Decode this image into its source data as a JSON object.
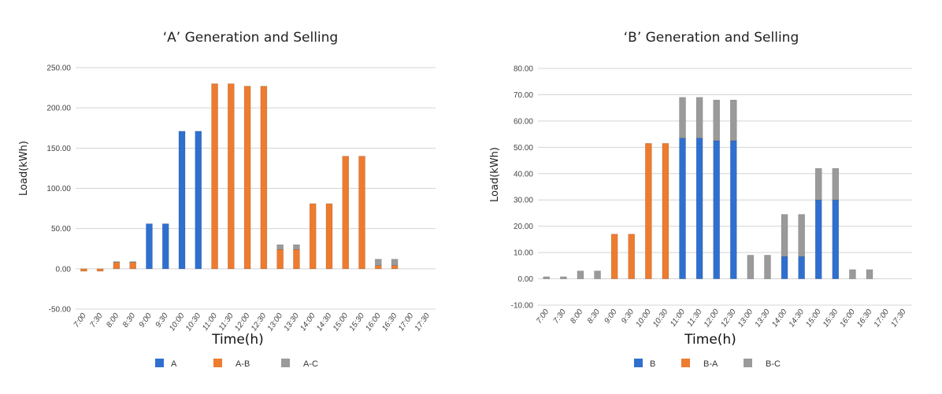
{
  "colors": {
    "blue": "#2f6fd0",
    "orange": "#ee7b2e",
    "gray": "#9a9a9a",
    "grid": "#d4d4d4"
  },
  "chart_data": [
    {
      "type": "bar",
      "stacked": true,
      "title": "‘A’ Generation and Selling",
      "xlabel": "Time(h)",
      "ylabel": "Load(kWh)",
      "ylim": [
        -50,
        250
      ],
      "yticks": [
        -50,
        0,
        50,
        100,
        150,
        200,
        250
      ],
      "ytick_labels": [
        "-50.00",
        "0.00",
        "50.00",
        "100.00",
        "150.00",
        "200.00",
        "250.00"
      ],
      "grid": true,
      "legend_position": "bottom",
      "categories": [
        "7:00",
        "7:30",
        "8:00",
        "8:30",
        "9:00",
        "9:30",
        "10:00",
        "10:30",
        "11:00",
        "11:30",
        "12:00",
        "12:30",
        "13:00",
        "13:30",
        "14:00",
        "14:30",
        "15:00",
        "15:30",
        "16:00",
        "16:30",
        "17:00",
        "17:30"
      ],
      "series": [
        {
          "name": "A",
          "color": "#2f6fd0",
          "values": [
            0,
            0,
            0,
            0,
            56,
            56,
            171,
            171,
            0,
            0,
            0,
            0,
            0,
            0,
            0,
            0,
            0,
            0,
            0,
            0,
            0,
            0
          ]
        },
        {
          "name": "A-B",
          "color": "#ee7b2e",
          "values": [
            -3,
            -3,
            8,
            8,
            0,
            0,
            0,
            0,
            230,
            230,
            227,
            227,
            24,
            24,
            81,
            81,
            140,
            140,
            4,
            4,
            0,
            0
          ]
        },
        {
          "name": "A-C",
          "color": "#9a9a9a",
          "values": [
            0,
            0,
            1,
            1,
            0,
            0,
            0,
            0,
            0,
            0,
            0,
            0,
            6,
            6,
            0,
            0,
            0,
            0,
            8,
            8,
            0,
            0
          ]
        }
      ]
    },
    {
      "type": "bar",
      "stacked": true,
      "title": "‘B’ Generation and Selling",
      "xlabel": "Time(h)",
      "ylabel": "Load(kWh)",
      "ylim": [
        -10,
        80
      ],
      "yticks": [
        -10,
        0,
        10,
        20,
        30,
        40,
        50,
        60,
        70,
        80
      ],
      "ytick_labels": [
        "-10.00",
        "0.00",
        "10.00",
        "20.00",
        "30.00",
        "40.00",
        "50.00",
        "60.00",
        "70.00",
        "80.00"
      ],
      "grid": true,
      "legend_position": "bottom",
      "categories": [
        "7:00",
        "7:30",
        "8:00",
        "8:30",
        "9:00",
        "9:30",
        "10:00",
        "10:30",
        "11:00",
        "11:30",
        "12:00",
        "12:30",
        "13:00",
        "13:30",
        "14:00",
        "14:30",
        "15:00",
        "15:30",
        "16:00",
        "16:30",
        "17:00",
        "17:30"
      ],
      "series": [
        {
          "name": "B",
          "color": "#2f6fd0",
          "values": [
            0,
            0,
            0,
            0,
            0,
            0,
            0,
            0,
            53.5,
            53.5,
            52.5,
            52.5,
            0,
            0,
            8.5,
            8.5,
            30,
            30,
            0,
            0,
            0,
            0
          ]
        },
        {
          "name": "B-A",
          "color": "#ee7b2e",
          "values": [
            0,
            0,
            0,
            0,
            17,
            17,
            51.5,
            51.5,
            0,
            0,
            0,
            0,
            0,
            0,
            0,
            0,
            0,
            0,
            0,
            0,
            0,
            0
          ]
        },
        {
          "name": "B-C",
          "color": "#9a9a9a",
          "values": [
            0.8,
            0.8,
            3,
            3,
            0,
            0,
            0,
            0,
            15.5,
            15.5,
            15.5,
            15.5,
            9,
            9,
            16,
            16,
            12,
            12,
            3.5,
            3.5,
            0,
            0
          ]
        }
      ]
    }
  ]
}
